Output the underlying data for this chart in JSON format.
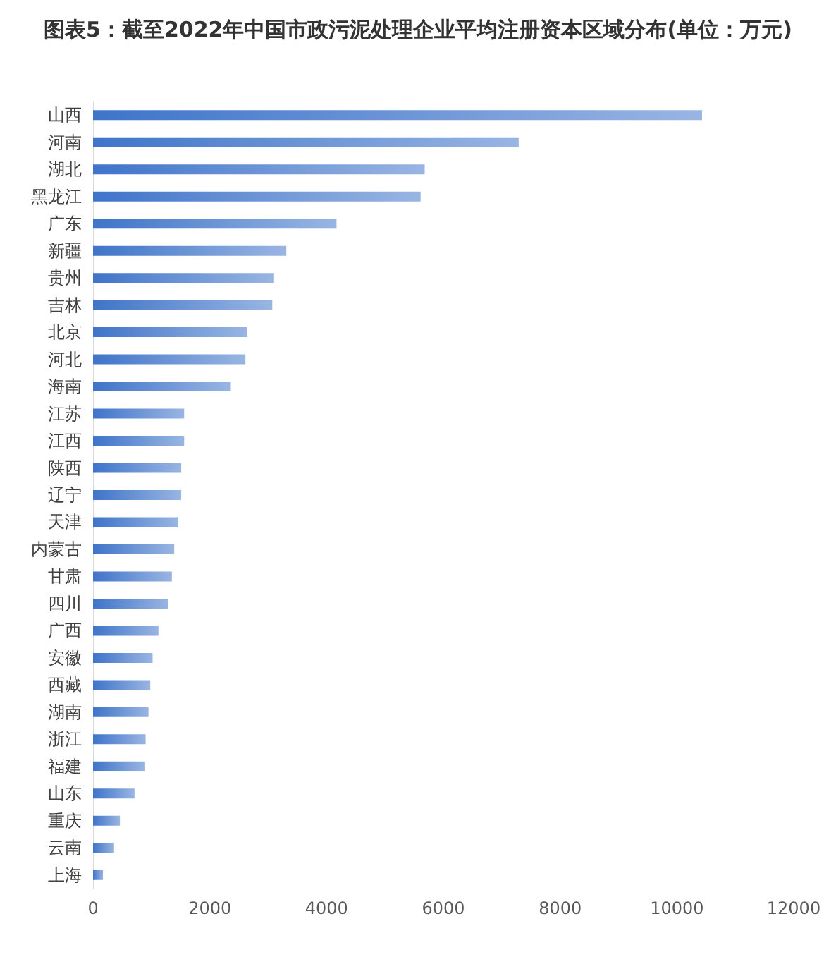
{
  "chart_data": {
    "type": "bar",
    "orientation": "horizontal",
    "title": "图表5：截至2022年中国市政污泥处理企业平均注册资本区域分布(单位：万元)",
    "categories": [
      "山西",
      "河南",
      "湖北",
      "黑龙江",
      "广东",
      "新疆",
      "贵州",
      "吉林",
      "北京",
      "河北",
      "海南",
      "江苏",
      "江西",
      "陕西",
      "辽宁",
      "天津",
      "内蒙古",
      "甘肃",
      "四川",
      "广西",
      "安徽",
      "西藏",
      "湖南",
      "浙江",
      "福建",
      "山东",
      "重庆",
      "云南",
      "上海"
    ],
    "values": [
      10430,
      7290,
      5680,
      5610,
      4170,
      3310,
      3100,
      3070,
      2640,
      2610,
      2360,
      1560,
      1560,
      1510,
      1510,
      1460,
      1390,
      1350,
      1290,
      1120,
      1020,
      980,
      950,
      900,
      880,
      710,
      460,
      360,
      170
    ],
    "color": "#3f74c9",
    "xlim": [
      0,
      12000
    ],
    "xticks": [
      0,
      2000,
      4000,
      6000,
      8000,
      10000,
      12000
    ],
    "grid": false
  }
}
